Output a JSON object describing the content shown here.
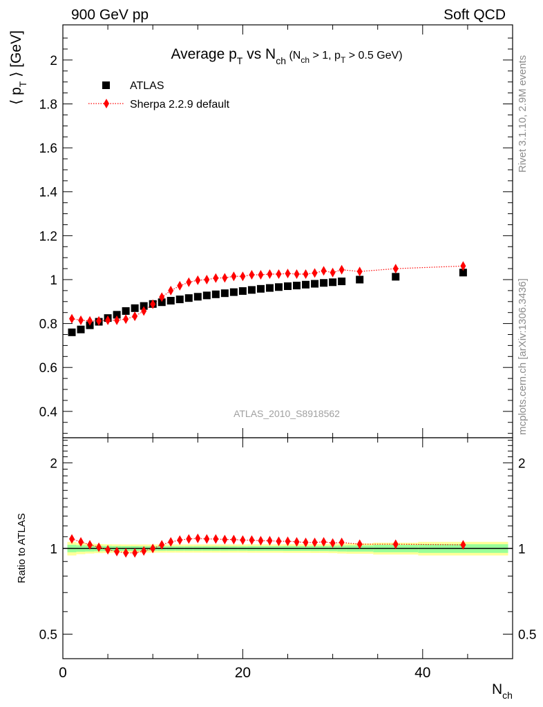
{
  "header": {
    "left_label": "900 GeV pp",
    "right_label": "Soft QCD",
    "side_label_top": "Rivet 3.1.10,  2.9M events",
    "side_label_bottom": "mcplots.cern.ch [arXiv:1306.3436]",
    "analysis_label": "ATLAS_2010_S8918562"
  },
  "colors": {
    "data": "#000000",
    "mc": "#ff0000",
    "band_inner": "#99ff99",
    "band_outer": "#ffff99"
  },
  "chart_data": [
    {
      "type": "scatter",
      "title_main": "Average p",
      "title_main_sub": "T",
      "title_mid": " vs N",
      "title_mid_sub": "ch",
      "title_cut_1": " (N",
      "title_cut_1_sub": "ch",
      "title_cut_2": " > 1, p",
      "title_cut_2_sub": "T",
      "title_cut_3": " > 0.5 GeV)",
      "ylabel_main": "⟨ p",
      "ylabel_sub": "T",
      "ylabel_end": " ⟩  [GeV]",
      "xlim": [
        0,
        50
      ],
      "ylim": [
        0.28,
        2.16
      ],
      "yticks": [
        0.4,
        0.6,
        0.8,
        1,
        1.2,
        1.4,
        1.6,
        1.8,
        2
      ],
      "ytick_labels": [
        "0.4",
        "0.6",
        "0.8",
        "1",
        "1.2",
        "1.4",
        "1.6",
        "1.8",
        "2"
      ],
      "legend_position": "top-left",
      "series": [
        {
          "name": "ATLAS",
          "marker": "square",
          "x": [
            1,
            2,
            3,
            4,
            5,
            6,
            7,
            8,
            9,
            10,
            11,
            12,
            13,
            14,
            15,
            16,
            17,
            18,
            19,
            20,
            21,
            22,
            23,
            24,
            25,
            26,
            27,
            28,
            29,
            30,
            31,
            33,
            37,
            44.5
          ],
          "y": [
            0.76,
            0.773,
            0.792,
            0.808,
            0.825,
            0.84,
            0.857,
            0.87,
            0.88,
            0.889,
            0.897,
            0.904,
            0.91,
            0.916,
            0.922,
            0.928,
            0.933,
            0.938,
            0.943,
            0.948,
            0.953,
            0.958,
            0.962,
            0.966,
            0.97,
            0.973,
            0.977,
            0.981,
            0.985,
            0.988,
            0.992,
            1.0,
            1.013,
            1.032
          ]
        },
        {
          "name": "Sherpa 2.2.9 default",
          "marker": "diamond",
          "line": "dotted",
          "x": [
            1,
            2,
            3,
            4,
            5,
            6,
            7,
            8,
            9,
            10,
            11,
            12,
            13,
            14,
            15,
            16,
            17,
            18,
            19,
            20,
            21,
            22,
            23,
            24,
            25,
            26,
            27,
            28,
            29,
            30,
            31,
            33,
            37,
            44.5
          ],
          "y": [
            0.822,
            0.815,
            0.812,
            0.812,
            0.815,
            0.815,
            0.82,
            0.833,
            0.857,
            0.888,
            0.92,
            0.95,
            0.972,
            0.988,
            0.997,
            1.0,
            1.007,
            1.008,
            1.015,
            1.015,
            1.022,
            1.022,
            1.025,
            1.025,
            1.028,
            1.025,
            1.025,
            1.03,
            1.04,
            1.032,
            1.045,
            1.037,
            1.05,
            1.062
          ]
        }
      ]
    },
    {
      "type": "scatter",
      "ylabel": "Ratio to ATLAS",
      "xlabel_main": "N",
      "xlabel_sub": "ch",
      "xlim": [
        0,
        50
      ],
      "ylim": [
        0.41,
        2.45
      ],
      "yscale": "log",
      "yticks": [
        0.5,
        1,
        2
      ],
      "ytick_labels": [
        "0.5",
        "1",
        "2"
      ],
      "xticks": [
        0,
        20,
        40
      ],
      "xtick_labels": [
        "0",
        "20",
        "40"
      ],
      "reference_line": 1,
      "bands": {
        "x_edges": [
          0.5,
          1.5,
          2.5,
          3.5,
          4.5,
          5.5,
          6.5,
          7.5,
          8.5,
          9.5,
          10.5,
          11.5,
          12.5,
          13.5,
          14.5,
          15.5,
          16.5,
          17.5,
          18.5,
          19.5,
          20.5,
          21.5,
          22.5,
          23.5,
          24.5,
          25.5,
          26.5,
          27.5,
          28.5,
          29.5,
          30.5,
          31.5,
          34.5,
          39.5,
          49.5
        ],
        "inner": [
          0.03,
          0.026,
          0.024,
          0.022,
          0.021,
          0.02,
          0.019,
          0.019,
          0.018,
          0.018,
          0.018,
          0.018,
          0.018,
          0.018,
          0.018,
          0.018,
          0.018,
          0.018,
          0.018,
          0.018,
          0.019,
          0.019,
          0.019,
          0.019,
          0.02,
          0.02,
          0.02,
          0.021,
          0.021,
          0.022,
          0.024,
          0.025,
          0.03,
          0.035
        ],
        "outer": [
          0.055,
          0.045,
          0.04,
          0.037,
          0.035,
          0.034,
          0.033,
          0.033,
          0.033,
          0.033,
          0.033,
          0.033,
          0.033,
          0.033,
          0.033,
          0.033,
          0.033,
          0.033,
          0.033,
          0.033,
          0.034,
          0.034,
          0.034,
          0.034,
          0.035,
          0.035,
          0.035,
          0.036,
          0.036,
          0.037,
          0.04,
          0.042,
          0.048,
          0.055
        ]
      },
      "series": [
        {
          "name": "Sherpa 2.2.9 default",
          "marker": "diamond",
          "line": "dotted",
          "x": [
            1,
            2,
            3,
            4,
            5,
            6,
            7,
            8,
            9,
            10,
            11,
            12,
            13,
            14,
            15,
            16,
            17,
            18,
            19,
            20,
            21,
            22,
            23,
            24,
            25,
            26,
            27,
            28,
            29,
            30,
            31,
            33,
            37,
            44.5
          ],
          "y": [
            1.08,
            1.055,
            1.03,
            1.01,
            0.99,
            0.975,
            0.965,
            0.965,
            0.98,
            1.0,
            1.03,
            1.055,
            1.07,
            1.08,
            1.085,
            1.08,
            1.08,
            1.075,
            1.075,
            1.07,
            1.07,
            1.065,
            1.065,
            1.06,
            1.06,
            1.055,
            1.05,
            1.05,
            1.055,
            1.045,
            1.05,
            1.035,
            1.035,
            1.03
          ]
        }
      ]
    }
  ]
}
